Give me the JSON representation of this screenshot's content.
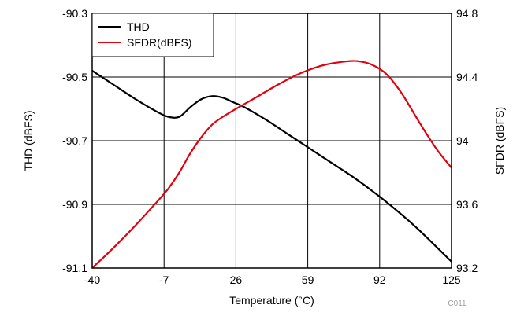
{
  "chart_data": {
    "type": "line",
    "title": "",
    "xlabel": "Temperature (°C)",
    "ylabel_left": "THD (dBFS)",
    "ylabel_right": "SFDR (dBFS)",
    "figure_code": "C011",
    "xlim": [
      -40,
      125
    ],
    "ylim_left": [
      -91.1,
      -90.3
    ],
    "ylim_right": [
      93.2,
      94.8
    ],
    "x_ticks": [
      "-40",
      "-7",
      "26",
      "59",
      "92",
      "125"
    ],
    "y_ticks_left": [
      "-90.3",
      "-90.5",
      "-90.7",
      "-90.9",
      "-91.1"
    ],
    "y_ticks_right": [
      "94.8",
      "94.4",
      "94",
      "93.6",
      "93.2"
    ],
    "grid": true,
    "legend_position": "top-left",
    "series": [
      {
        "name": "THD",
        "axis": "left",
        "color": "#000000",
        "x": [
          -40,
          -30,
          -20,
          -10,
          -5,
          0,
          5,
          10,
          15,
          20,
          25,
          30,
          40,
          50,
          60,
          70,
          80,
          90,
          100,
          110,
          125
        ],
        "y": [
          -90.48,
          -90.525,
          -90.57,
          -90.61,
          -90.625,
          -90.625,
          -90.595,
          -90.57,
          -90.56,
          -90.565,
          -90.58,
          -90.595,
          -90.635,
          -90.68,
          -90.725,
          -90.77,
          -90.815,
          -90.865,
          -90.92,
          -90.98,
          -91.08
        ]
      },
      {
        "name": "SFDR(dBFS)",
        "axis": "right",
        "color": "#e3000f",
        "x": [
          -40,
          -30,
          -20,
          -10,
          -5,
          0,
          5,
          10,
          15,
          20,
          26,
          35,
          45,
          55,
          65,
          72,
          78,
          82,
          88,
          95,
          102,
          110,
          118,
          125
        ],
        "y": [
          93.2,
          93.33,
          93.47,
          93.62,
          93.7,
          93.8,
          93.92,
          94.02,
          94.1,
          94.15,
          94.2,
          94.27,
          94.35,
          94.42,
          94.47,
          94.49,
          94.5,
          94.5,
          94.48,
          94.42,
          94.3,
          94.12,
          93.95,
          93.83
        ]
      }
    ]
  }
}
